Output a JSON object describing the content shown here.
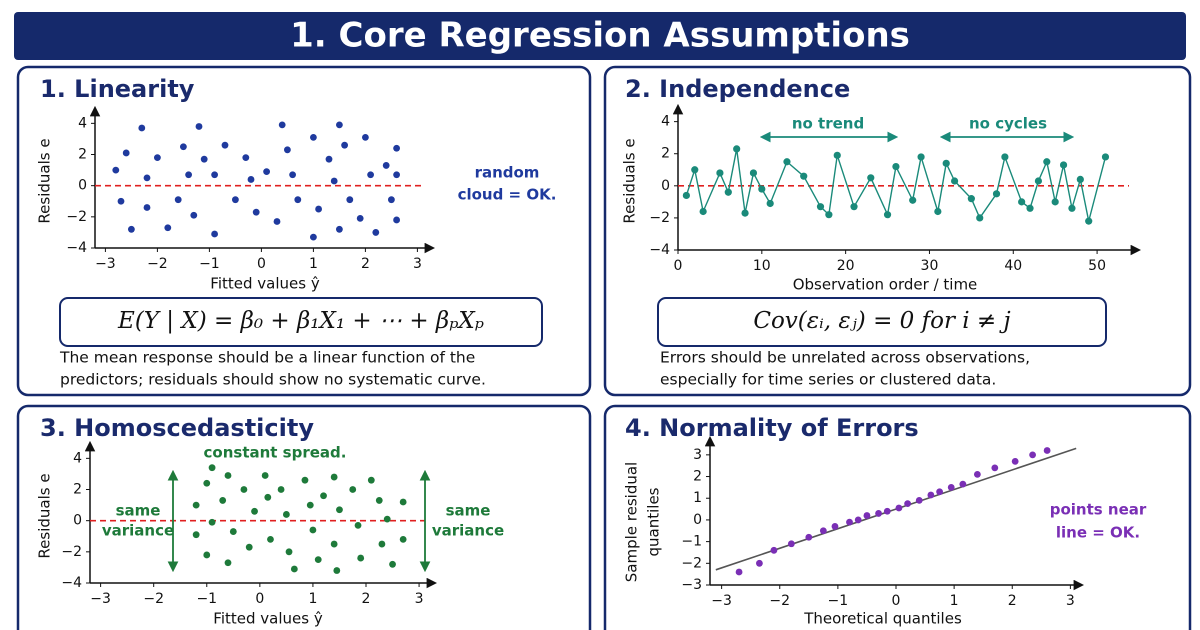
{
  "header": {
    "title": "1. Core Regression Assumptions"
  },
  "chart_data": [
    {
      "type": "scatter",
      "title": "1. Linearity",
      "color": "#1f3a9e",
      "xlabel": "Fitted values ŷ",
      "ylabel": "Residuals e",
      "xlim": [
        -3.2,
        3.3
      ],
      "ylim": [
        -4,
        4.6
      ],
      "xticks": [
        {
          "value": -3,
          "label": "−3"
        },
        {
          "value": -2,
          "label": "−2"
        },
        {
          "value": -1,
          "label": "−1"
        },
        0,
        1,
        2,
        3
      ],
      "yticks": [
        {
          "value": -4,
          "label": "−4"
        },
        {
          "value": -2,
          "label": "−2"
        },
        0,
        2,
        4
      ],
      "zero_line": true,
      "x": [
        -2.8,
        -2.6,
        -2.3,
        -2.7,
        -2.5,
        -2.0,
        -2.2,
        -2.2,
        -1.5,
        -1.8,
        -1.6,
        -1.2,
        -1.1,
        -1.4,
        -1.3,
        -0.9,
        -0.7,
        -0.9,
        -0.5,
        -0.3,
        -0.2,
        -0.1,
        0.1,
        0.4,
        0.5,
        0.6,
        0.3,
        0.7,
        1.0,
        1.0,
        1.3,
        1.4,
        1.1,
        1.5,
        1.6,
        1.5,
        1.7,
        2.0,
        2.1,
        1.9,
        2.2,
        2.4,
        2.6,
        2.6,
        2.5,
        2.6
      ],
      "values": [
        1.0,
        2.1,
        3.7,
        -1.0,
        -2.8,
        1.8,
        0.5,
        -1.4,
        2.5,
        -2.7,
        -0.9,
        3.8,
        1.7,
        0.7,
        -1.9,
        -3.1,
        2.6,
        0.7,
        -0.9,
        1.8,
        0.4,
        -1.7,
        0.9,
        3.9,
        2.3,
        0.7,
        -2.3,
        -0.9,
        3.1,
        -3.3,
        1.7,
        0.3,
        -1.5,
        3.9,
        2.6,
        -2.8,
        -0.9,
        3.1,
        0.7,
        -2.1,
        -3.0,
        1.3,
        2.4,
        0.7,
        -0.9,
        -2.2
      ],
      "annotations": [
        "random",
        "cloud = OK."
      ],
      "formula": "E(Y | X) = β₀ + β₁X₁ + ⋯ + βₚXₚ",
      "description": [
        "The mean response should be a linear function of the",
        "predictors; residuals should show no systematic curve."
      ]
    },
    {
      "type": "line",
      "title": "2. Independence",
      "color": "#1a8a7a",
      "xlabel": "Observation order / time",
      "ylabel": "Residuals e",
      "xlim": [
        0,
        55
      ],
      "ylim": [
        -4,
        4.6
      ],
      "xticks": [
        0,
        10,
        20,
        30,
        40,
        50
      ],
      "yticks": [
        {
          "value": -4,
          "label": "−4"
        },
        {
          "value": -2,
          "label": "−2"
        },
        0,
        2,
        4
      ],
      "zero_line": true,
      "x": [
        1,
        2,
        3,
        5,
        6,
        7,
        8,
        9,
        10,
        11,
        13,
        15,
        17,
        18,
        19,
        21,
        23,
        25,
        26,
        28,
        29,
        31,
        32,
        33,
        35,
        36,
        38,
        39,
        41,
        42,
        43,
        44,
        45,
        46,
        47,
        48,
        49,
        51
      ],
      "values": [
        -0.6,
        1.0,
        -1.6,
        0.8,
        -0.4,
        2.3,
        -1.7,
        0.8,
        -0.2,
        -1.1,
        1.5,
        0.6,
        -1.3,
        -1.8,
        1.9,
        -1.3,
        0.5,
        -1.8,
        1.2,
        -0.9,
        1.8,
        -1.6,
        1.4,
        0.3,
        -0.8,
        -2.0,
        -0.5,
        1.8,
        -1.0,
        -1.4,
        0.3,
        1.5,
        -1.0,
        1.3,
        -1.4,
        0.4,
        -2.2,
        1.8
      ],
      "annotations": [
        "no trend",
        "no cycles"
      ],
      "formula": "Cov(εᵢ, εⱼ) = 0   for i ≠ j",
      "description": [
        "Errors should be unrelated across observations,",
        "especially for time series or clustered data."
      ]
    },
    {
      "type": "scatter",
      "title": "3. Homoscedasticity",
      "color": "#1e7a3a",
      "xlabel": "Fitted values ŷ",
      "ylabel": "Residuals e",
      "xlim": [
        -3.2,
        3.3
      ],
      "ylim": [
        -4,
        4.6
      ],
      "xticks": [
        {
          "value": -3,
          "label": "−3"
        },
        {
          "value": -2,
          "label": "−2"
        },
        {
          "value": -1,
          "label": "−1"
        },
        0,
        1,
        2,
        3
      ],
      "yticks": [
        {
          "value": -4,
          "label": "−4"
        },
        {
          "value": -2,
          "label": "−2"
        },
        0,
        2,
        4
      ],
      "zero_line": true,
      "x": [
        -1.2,
        -1.0,
        -0.9,
        -1.2,
        -1.0,
        -0.9,
        -0.6,
        -0.7,
        -0.5,
        -0.6,
        -0.3,
        -0.1,
        -0.2,
        0.1,
        0.15,
        0.2,
        0.4,
        0.5,
        0.55,
        0.65,
        0.85,
        0.95,
        1.0,
        1.1,
        1.2,
        1.4,
        1.5,
        1.4,
        1.45,
        1.75,
        1.85,
        1.9,
        2.1,
        2.25,
        2.4,
        2.3,
        2.5,
        2.7,
        2.7
      ],
      "values": [
        1.0,
        2.4,
        3.4,
        -0.9,
        -2.2,
        -0.1,
        2.9,
        1.3,
        -0.7,
        -2.7,
        2.0,
        0.6,
        -1.7,
        2.9,
        1.5,
        -1.2,
        2.0,
        0.4,
        -2.0,
        -3.1,
        2.6,
        1.0,
        -0.6,
        -2.5,
        1.6,
        2.8,
        0.7,
        -1.5,
        -3.2,
        2.0,
        -0.3,
        -2.4,
        2.6,
        1.3,
        0.1,
        -1.5,
        -2.8,
        1.2,
        -1.2
      ],
      "annotations": [
        "constant spread.",
        "same",
        "variance",
        "same",
        "variance"
      ]
    },
    {
      "type": "scatter",
      "title": "4. Normality of Errors",
      "color": "#7a2fb5",
      "xlabel": "Theoretical quantiles",
      "ylabel": [
        "Sample residual",
        "quantiles"
      ],
      "xlim": [
        -3.2,
        3.2
      ],
      "ylim": [
        -3,
        3.5
      ],
      "xticks": [
        {
          "value": -3,
          "label": "−3"
        },
        {
          "value": -2,
          "label": "−2"
        },
        {
          "value": -1,
          "label": "−1"
        },
        0,
        1,
        2,
        3
      ],
      "yticks": [
        {
          "value": -3,
          "label": "−3"
        },
        {
          "value": -2,
          "label": "−2"
        },
        {
          "value": -1,
          "label": "−1"
        },
        0,
        1,
        2,
        3
      ],
      "zero_line": false,
      "x": [
        -2.7,
        -2.35,
        -2.1,
        -1.8,
        -1.5,
        -1.25,
        -1.05,
        -0.8,
        -0.65,
        -0.5,
        -0.3,
        -0.15,
        0.05,
        0.2,
        0.4,
        0.6,
        0.75,
        0.95,
        1.15,
        1.4,
        1.7,
        2.05,
        2.35,
        2.6
      ],
      "values": [
        -2.4,
        -2.0,
        -1.4,
        -1.1,
        -0.8,
        -0.5,
        -0.3,
        -0.1,
        0,
        0.2,
        0.3,
        0.4,
        0.55,
        0.75,
        0.9,
        1.15,
        1.3,
        1.5,
        1.65,
        2.1,
        2.4,
        2.7,
        3.0,
        3.2
      ],
      "reference_line": {
        "x": [
          -3.1,
          3.1
        ],
        "y": [
          -2.3,
          3.3
        ]
      },
      "annotations": [
        "points near",
        "line = OK."
      ]
    }
  ]
}
